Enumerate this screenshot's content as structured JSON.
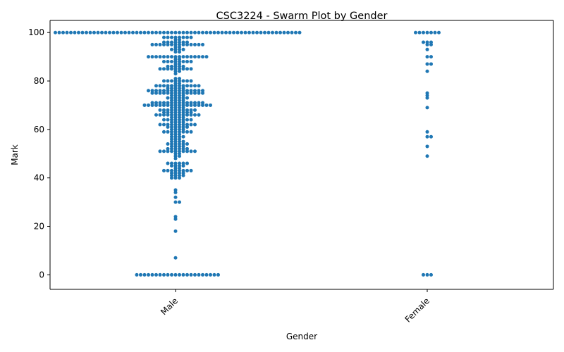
{
  "chart_data": {
    "type": "scatter",
    "style": "swarm",
    "title": "CSC3224 - Swarm Plot by Gender",
    "xlabel": "Gender",
    "ylabel": "Mark",
    "categories": [
      "Male",
      "Female"
    ],
    "ylim": [
      -6,
      105
    ],
    "yticks": [
      0,
      20,
      40,
      60,
      80,
      100
    ],
    "x_tick_rotation": 45,
    "grid": false,
    "legend": "none",
    "point_color": "#1f77b4",
    "series": [
      {
        "values": [
          {
            "v": 100,
            "n": 64
          },
          {
            "v": 98,
            "n": 8
          },
          {
            "v": 97,
            "n": 2
          },
          {
            "v": 96,
            "n": 7
          },
          {
            "v": 95,
            "n": 14
          },
          {
            "v": 94,
            "n": 2
          },
          {
            "v": 93,
            "n": 4
          },
          {
            "v": 92,
            "n": 2
          },
          {
            "v": 90,
            "n": 16
          },
          {
            "v": 89,
            "n": 2
          },
          {
            "v": 88,
            "n": 8
          },
          {
            "v": 87,
            "n": 2
          },
          {
            "v": 86,
            "n": 5
          },
          {
            "v": 85,
            "n": 9
          },
          {
            "v": 84,
            "n": 2
          },
          {
            "v": 83,
            "n": 1
          },
          {
            "v": 81,
            "n": 2
          },
          {
            "v": 80,
            "n": 8
          },
          {
            "v": 79,
            "n": 2
          },
          {
            "v": 78,
            "n": 12
          },
          {
            "v": 77,
            "n": 5
          },
          {
            "v": 76,
            "n": 15
          },
          {
            "v": 75,
            "n": 14
          },
          {
            "v": 74,
            "n": 4
          },
          {
            "v": 73,
            "n": 6
          },
          {
            "v": 72,
            "n": 4
          },
          {
            "v": 71,
            "n": 14
          },
          {
            "v": 70,
            "n": 18
          },
          {
            "v": 69,
            "n": 4
          },
          {
            "v": 68,
            "n": 10
          },
          {
            "v": 67,
            "n": 8
          },
          {
            "v": 66,
            "n": 12
          },
          {
            "v": 65,
            "n": 4
          },
          {
            "v": 64,
            "n": 8
          },
          {
            "v": 63,
            "n": 4
          },
          {
            "v": 62,
            "n": 10
          },
          {
            "v": 61,
            "n": 6
          },
          {
            "v": 60,
            "n": 4
          },
          {
            "v": 59,
            "n": 8
          },
          {
            "v": 58,
            "n": 3
          },
          {
            "v": 57,
            "n": 4
          },
          {
            "v": 56,
            "n": 3
          },
          {
            "v": 55,
            "n": 4
          },
          {
            "v": 54,
            "n": 6
          },
          {
            "v": 53,
            "n": 4
          },
          {
            "v": 52,
            "n": 6
          },
          {
            "v": 51,
            "n": 10
          },
          {
            "v": 50,
            "n": 2
          },
          {
            "v": 49,
            "n": 2
          },
          {
            "v": 48,
            "n": 1
          },
          {
            "v": 46,
            "n": 6
          },
          {
            "v": 45,
            "n": 4
          },
          {
            "v": 44,
            "n": 2
          },
          {
            "v": 43,
            "n": 8
          },
          {
            "v": 42,
            "n": 4
          },
          {
            "v": 41,
            "n": 4
          },
          {
            "v": 40,
            "n": 3
          },
          {
            "v": 35,
            "n": 1
          },
          {
            "v": 34,
            "n": 1
          },
          {
            "v": 32,
            "n": 1
          },
          {
            "v": 30,
            "n": 2
          },
          {
            "v": 24,
            "n": 1
          },
          {
            "v": 23,
            "n": 1
          },
          {
            "v": 18,
            "n": 1
          },
          {
            "v": 7,
            "n": 1
          },
          {
            "v": 0,
            "n": 22
          }
        ]
      },
      {
        "values": [
          {
            "v": 100,
            "n": 7
          },
          {
            "v": 96,
            "n": 3
          },
          {
            "v": 95,
            "n": 2
          },
          {
            "v": 93,
            "n": 1
          },
          {
            "v": 90,
            "n": 2
          },
          {
            "v": 87,
            "n": 2
          },
          {
            "v": 84,
            "n": 1
          },
          {
            "v": 75,
            "n": 1
          },
          {
            "v": 74,
            "n": 1
          },
          {
            "v": 73,
            "n": 1
          },
          {
            "v": 69,
            "n": 1
          },
          {
            "v": 59,
            "n": 1
          },
          {
            "v": 57,
            "n": 2
          },
          {
            "v": 53,
            "n": 1
          },
          {
            "v": 49,
            "n": 1
          },
          {
            "v": 0,
            "n": 3
          }
        ]
      }
    ]
  }
}
